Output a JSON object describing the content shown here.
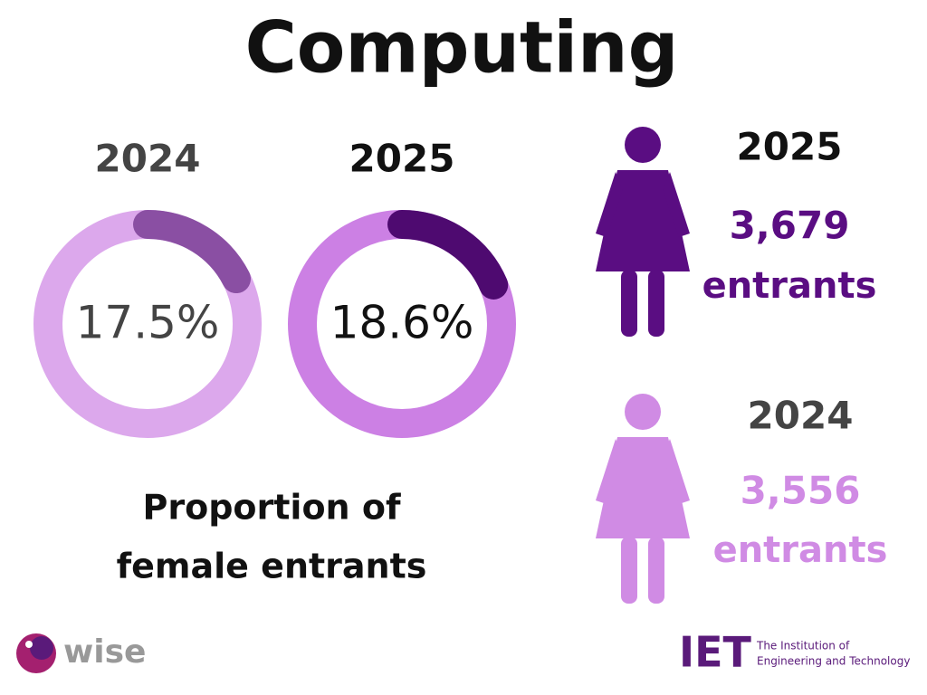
{
  "title": "Computing",
  "donuts": [
    {
      "year": "2024",
      "value": 17.5,
      "value_label": "17.5%",
      "ring_color": "#dca8ec",
      "arc_color": "#8a4fa3",
      "year_color": "#444444",
      "label_color": "#444444"
    },
    {
      "year": "2025",
      "value": 18.6,
      "value_label": "18.6%",
      "ring_color": "#cc80e4",
      "arc_color": "#4e0a70",
      "year_color": "#111111",
      "label_color": "#111111"
    }
  ],
  "caption": [
    "Proportion of",
    "female entrants"
  ],
  "entrants": [
    {
      "year": "2025",
      "count": "3,679",
      "unit": "entrants",
      "color": "#5a0d82"
    },
    {
      "year": "2024",
      "count": "3,556",
      "unit": "entrants",
      "color": "#d08be4"
    }
  ],
  "footer": {
    "left_logo": "wise",
    "right_logo": "IET",
    "right_text": [
      "The Institution of",
      "Engineering and Technology"
    ]
  }
}
